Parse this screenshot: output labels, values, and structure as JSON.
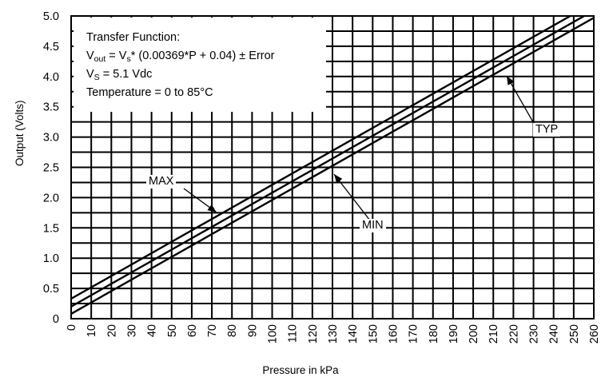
{
  "chart_data": {
    "type": "line",
    "xlabel": "Pressure in kPa",
    "ylabel": "Output (Volts)",
    "xlim": [
      0,
      260
    ],
    "ylim": [
      0,
      5.0
    ],
    "x_ticks": [
      "0",
      "10",
      "20",
      "30",
      "40",
      "50",
      "60",
      "70",
      "80",
      "90",
      "100",
      "110",
      "120",
      "130",
      "140",
      "150",
      "160",
      "170",
      "180",
      "190",
      "200",
      "210",
      "220",
      "230",
      "240",
      "250",
      "260"
    ],
    "y_ticks": [
      "0",
      "0.5",
      "1.0",
      "1.5",
      "2.0",
      "2.5",
      "3.0",
      "3.5",
      "4.0",
      "4.5",
      "5.0"
    ],
    "grid": true,
    "series": [
      {
        "name": "MAX",
        "x": [
          0,
          260
        ],
        "y": [
          0.33,
          5.22
        ]
      },
      {
        "name": "TYP",
        "x": [
          0,
          260
        ],
        "y": [
          0.2,
          5.09
        ]
      },
      {
        "name": "MIN",
        "x": [
          0,
          260
        ],
        "y": [
          0.08,
          4.97
        ]
      }
    ],
    "annotations": {
      "transfer_function_title": "Transfer Function:",
      "vout_prefix": "V",
      "vout_sub": "out",
      "vs_mid": " = V",
      "vs_sub": "s",
      "formula_rest": "* (0.00369*P + 0.04) ± Error",
      "supply_prefix": "V",
      "supply_sub": "S",
      "supply_rest": " = 5.1 Vdc",
      "temperature": "Temperature = 0 to 85°C",
      "max_label": "MAX",
      "min_label": "MIN",
      "typ_label": "TYP"
    }
  }
}
